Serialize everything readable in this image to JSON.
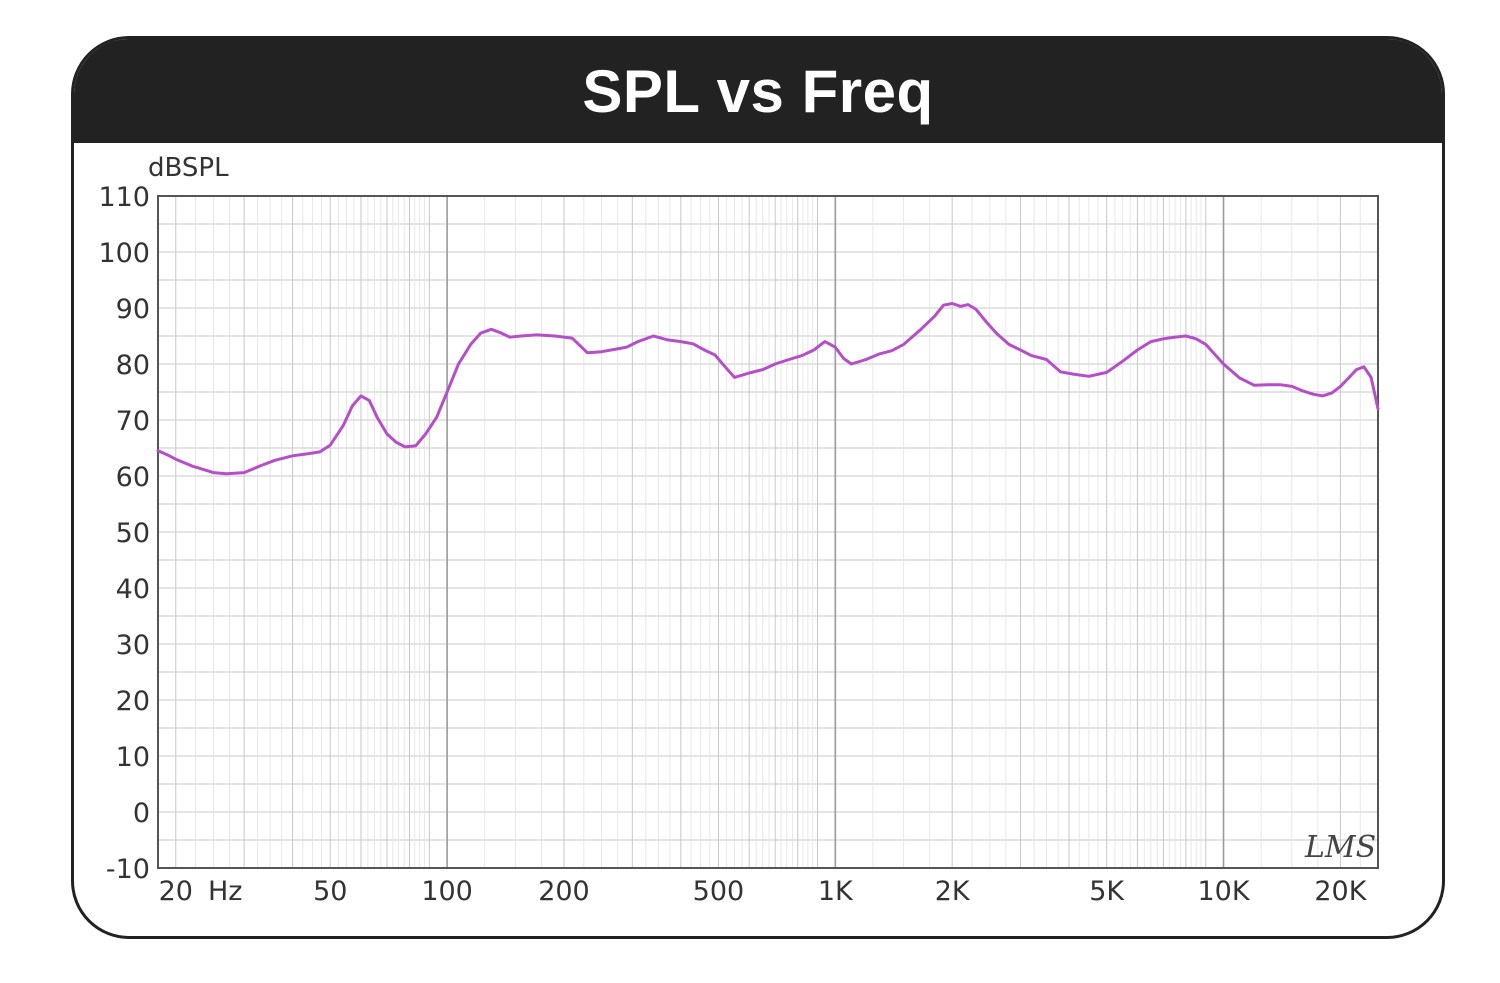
{
  "chart_data": {
    "type": "line",
    "title": "SPL vs Freq",
    "ylabel": "dBSPL",
    "xlabel": "",
    "x_scale": "log",
    "xlim": [
      18,
      25000
    ],
    "ylim": [
      -10,
      110
    ],
    "y_ticks": [
      -10,
      0,
      10,
      20,
      30,
      40,
      50,
      60,
      70,
      80,
      90,
      100,
      110
    ],
    "x_ticks": [
      {
        "value": 20,
        "label": "20"
      },
      {
        "value": 50,
        "label": "50"
      },
      {
        "value": 100,
        "label": "100"
      },
      {
        "value": 200,
        "label": "200"
      },
      {
        "value": 500,
        "label": "500"
      },
      {
        "value": 1000,
        "label": "1K"
      },
      {
        "value": 2000,
        "label": "2K"
      },
      {
        "value": 5000,
        "label": "5K"
      },
      {
        "value": 10000,
        "label": "10K"
      },
      {
        "value": 20000,
        "label": "20K"
      }
    ],
    "x_unit_label": "Hz",
    "grid": true,
    "watermark": "LMS",
    "colors": {
      "line": "#b44fc8",
      "grid": "#c8c8c8",
      "frame": "#222222",
      "axis": "#555555"
    },
    "series": [
      {
        "x": [
          18,
          19,
          20,
          22,
          24,
          25,
          27,
          30,
          33,
          36,
          40,
          44,
          47,
          50,
          54,
          57,
          60,
          63,
          66,
          70,
          74,
          78,
          83,
          88,
          94,
          100,
          107,
          115,
          122,
          130,
          137,
          145,
          155,
          170,
          190,
          210,
          230,
          250,
          270,
          290,
          310,
          340,
          370,
          400,
          430,
          460,
          490,
          520,
          550,
          600,
          650,
          700,
          760,
          820,
          880,
          940,
          1000,
          1050,
          1100,
          1200,
          1300,
          1400,
          1500,
          1650,
          1800,
          1900,
          2000,
          2100,
          2200,
          2300,
          2450,
          2600,
          2800,
          3000,
          3200,
          3500,
          3800,
          4100,
          4500,
          5000,
          5500,
          6000,
          6500,
          7000,
          7500,
          8000,
          8500,
          9000,
          10000,
          11000,
          12000,
          13000,
          14000,
          15000,
          16000,
          17000,
          18000,
          19000,
          20000,
          21000,
          22000,
          23000,
          24000,
          25000
        ],
        "y": [
          64.5,
          63.8,
          63.0,
          61.8,
          61.0,
          60.6,
          60.4,
          60.6,
          61.8,
          62.8,
          63.6,
          64.0,
          64.3,
          65.5,
          69.0,
          72.5,
          74.3,
          73.5,
          70.5,
          67.5,
          66.0,
          65.2,
          65.4,
          67.5,
          70.5,
          75.0,
          80.0,
          83.5,
          85.5,
          86.2,
          85.6,
          84.8,
          85.0,
          85.2,
          85.0,
          84.6,
          82.0,
          82.2,
          82.6,
          83.0,
          84.0,
          85.0,
          84.3,
          84.0,
          83.6,
          82.5,
          81.6,
          79.5,
          77.6,
          78.4,
          79.0,
          80.0,
          80.8,
          81.5,
          82.5,
          84.0,
          83.0,
          81.0,
          80.0,
          80.8,
          81.8,
          82.4,
          83.5,
          86.0,
          88.5,
          90.5,
          90.8,
          90.3,
          90.6,
          89.8,
          87.5,
          85.5,
          83.5,
          82.5,
          81.5,
          80.8,
          78.6,
          78.2,
          77.8,
          78.5,
          80.5,
          82.5,
          84.0,
          84.5,
          84.8,
          85.0,
          84.5,
          83.5,
          80.0,
          77.5,
          76.2,
          76.3,
          76.3,
          76.0,
          75.2,
          74.6,
          74.3,
          74.8,
          76.0,
          77.5,
          79.0,
          79.5,
          77.6,
          72.0
        ]
      }
    ]
  }
}
